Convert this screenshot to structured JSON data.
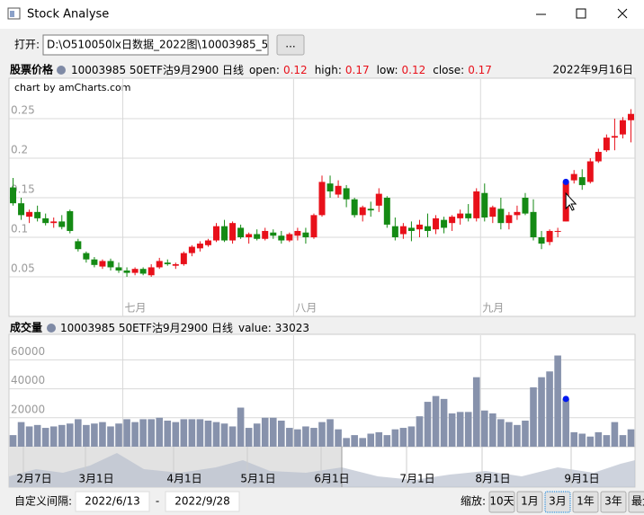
{
  "window": {
    "title": "Stock Analyse"
  },
  "toolbar": {
    "open_label": "打开:",
    "path": "D:\\O510050lx日数据_2022图\\10003985_51(",
    "browse_button": "..."
  },
  "chart_data": [
    {
      "type": "candlestick",
      "title": "股票价格",
      "credit": "chart by amCharts.com",
      "cursor_date": "2022年9月16日",
      "legend_fields": [
        "open:",
        "high:",
        "low:",
        "close:"
      ],
      "up_color": "#e8101a",
      "down_color": "#148a14",
      "grid": true,
      "ylim": [
        0,
        0.3
      ],
      "yticks": [
        0.05,
        0.1,
        0.15,
        0.2,
        0.25
      ],
      "xticks": [
        {
          "value": 14,
          "label": "七月"
        },
        {
          "value": 35,
          "label": "八月"
        },
        {
          "value": 58,
          "label": "九月"
        }
      ],
      "series": [
        {
          "name": "10003985 50ETF沽9月2900 日线",
          "open": [
            0.163,
            0.143,
            0.126,
            0.132,
            0.124,
            0.118,
            0.12,
            0.133,
            0.095,
            0.08,
            0.072,
            0.063,
            0.07,
            0.062,
            0.058,
            0.055,
            0.06,
            0.052,
            0.062,
            0.068,
            0.064,
            0.066,
            0.08,
            0.086,
            0.09,
            0.096,
            0.114,
            0.096,
            0.112,
            0.1,
            0.104,
            0.098,
            0.106,
            0.102,
            0.096,
            0.102,
            0.106,
            0.1,
            0.128,
            0.168,
            0.154,
            0.162,
            0.148,
            0.128,
            0.136,
            0.14,
            0.15,
            0.114,
            0.104,
            0.112,
            0.11,
            0.114,
            0.11,
            0.122,
            0.118,
            0.124,
            0.13,
            0.124,
            0.156,
            0.126,
            0.136,
            0.118,
            0.128,
            0.15,
            0.132,
            0.1,
            0.094,
            0.108,
            0.12,
            0.172,
            0.176,
            0.17,
            0.196,
            0.21,
            0.226,
            0.23,
            0.248
          ],
          "high": [
            0.175,
            0.15,
            0.135,
            0.14,
            0.13,
            0.125,
            0.128,
            0.135,
            0.098,
            0.082,
            0.075,
            0.072,
            0.073,
            0.068,
            0.062,
            0.062,
            0.062,
            0.066,
            0.074,
            0.072,
            0.068,
            0.082,
            0.09,
            0.095,
            0.098,
            0.118,
            0.122,
            0.12,
            0.116,
            0.106,
            0.11,
            0.112,
            0.11,
            0.108,
            0.106,
            0.112,
            0.112,
            0.13,
            0.178,
            0.178,
            0.172,
            0.166,
            0.15,
            0.14,
            0.145,
            0.162,
            0.152,
            0.125,
            0.118,
            0.12,
            0.122,
            0.13,
            0.128,
            0.126,
            0.128,
            0.135,
            0.142,
            0.162,
            0.168,
            0.14,
            0.15,
            0.132,
            0.14,
            0.156,
            0.148,
            0.108,
            0.11,
            0.112,
            0.17,
            0.185,
            0.186,
            0.2,
            0.212,
            0.23,
            0.25,
            0.252,
            0.262
          ],
          "low": [
            0.14,
            0.122,
            0.118,
            0.12,
            0.115,
            0.112,
            0.11,
            0.105,
            0.082,
            0.068,
            0.062,
            0.06,
            0.058,
            0.055,
            0.05,
            0.052,
            0.052,
            0.05,
            0.06,
            0.064,
            0.06,
            0.064,
            0.076,
            0.082,
            0.088,
            0.094,
            0.094,
            0.092,
            0.098,
            0.092,
            0.096,
            0.096,
            0.098,
            0.092,
            0.094,
            0.096,
            0.092,
            0.098,
            0.126,
            0.15,
            0.15,
            0.138,
            0.125,
            0.12,
            0.126,
            0.132,
            0.112,
            0.096,
            0.098,
            0.095,
            0.1,
            0.1,
            0.104,
            0.105,
            0.108,
            0.116,
            0.12,
            0.12,
            0.12,
            0.118,
            0.11,
            0.11,
            0.122,
            0.128,
            0.096,
            0.085,
            0.09,
            0.1,
            0.12,
            0.168,
            0.16,
            0.168,
            0.194,
            0.208,
            0.21,
            0.225,
            0.22
          ],
          "close": [
            0.143,
            0.128,
            0.132,
            0.124,
            0.118,
            0.12,
            0.113,
            0.108,
            0.085,
            0.072,
            0.065,
            0.07,
            0.062,
            0.058,
            0.055,
            0.06,
            0.054,
            0.062,
            0.07,
            0.066,
            0.066,
            0.08,
            0.088,
            0.092,
            0.096,
            0.114,
            0.096,
            0.118,
            0.1,
            0.104,
            0.098,
            0.108,
            0.102,
            0.096,
            0.104,
            0.108,
            0.1,
            0.128,
            0.17,
            0.158,
            0.165,
            0.148,
            0.128,
            0.138,
            0.134,
            0.155,
            0.116,
            0.1,
            0.114,
            0.108,
            0.116,
            0.108,
            0.124,
            0.112,
            0.126,
            0.13,
            0.124,
            0.158,
            0.125,
            0.138,
            0.118,
            0.128,
            0.132,
            0.13,
            0.1,
            0.092,
            0.108,
            0.108,
            0.17,
            0.18,
            0.166,
            0.196,
            0.208,
            0.226,
            0.228,
            0.248,
            0.256
          ]
        }
      ]
    },
    {
      "type": "bar",
      "title": "成交量",
      "legend_field": "value:",
      "grid": true,
      "ylim": [
        0,
        77000
      ],
      "yticks": [
        20000,
        40000,
        60000
      ],
      "series": [
        {
          "name": "10003985 50ETF沽9月2900 日线",
          "color": "#8792ac",
          "values": [
            8000,
            17000,
            14000,
            15000,
            13000,
            14000,
            15000,
            16000,
            19000,
            15000,
            16000,
            17000,
            14000,
            16000,
            19000,
            17000,
            19000,
            19000,
            20000,
            18000,
            17000,
            19000,
            19000,
            19000,
            18000,
            17000,
            16000,
            14000,
            27000,
            13000,
            16000,
            20000,
            20000,
            18000,
            13000,
            12000,
            14000,
            13000,
            17000,
            19000,
            12000,
            6000,
            8000,
            6000,
            9000,
            10000,
            8000,
            12000,
            13000,
            14000,
            21000,
            31000,
            35000,
            33000,
            23000,
            24000,
            24000,
            48000,
            25000,
            23000,
            19000,
            17000,
            15000,
            18000,
            41000,
            48000,
            52000,
            63000,
            33023,
            10000,
            9000,
            7000,
            10000,
            8000,
            17000,
            8000,
            12000
          ]
        }
      ]
    }
  ],
  "navigator": {
    "labels": [
      "2月7日",
      "3月1日",
      "4月1日",
      "5月1日",
      "6月1日",
      "7月1日",
      "8月1日",
      "9月1日"
    ]
  },
  "range": {
    "label": "自定义间隔:",
    "start": "2022/6/13",
    "separator": "-",
    "end": "2022/9/28"
  },
  "zoom": {
    "label": "缩放:",
    "buttons": [
      "10天",
      "1月",
      "3月",
      "1年",
      "3年",
      "最大"
    ]
  }
}
